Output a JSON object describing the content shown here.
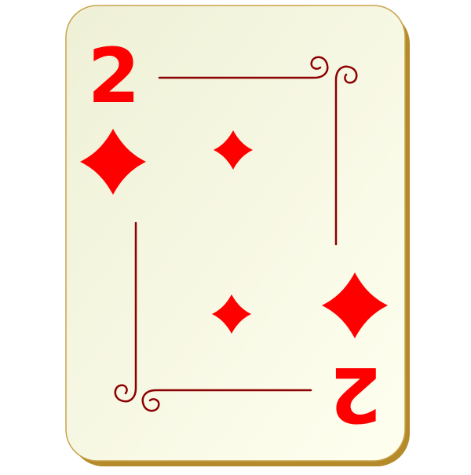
{
  "card": {
    "rank": "2",
    "suit": "diamonds",
    "suit_icon": "diamond-icon",
    "pips": 2
  },
  "colors": {
    "suit_red": "#ff0000",
    "frame_line": "#8b0000",
    "card_face_start": "#eef0d6",
    "card_face_end": "#fffff0",
    "card_edge": "#c8a24a",
    "card_shadow": "#b58a2a"
  }
}
